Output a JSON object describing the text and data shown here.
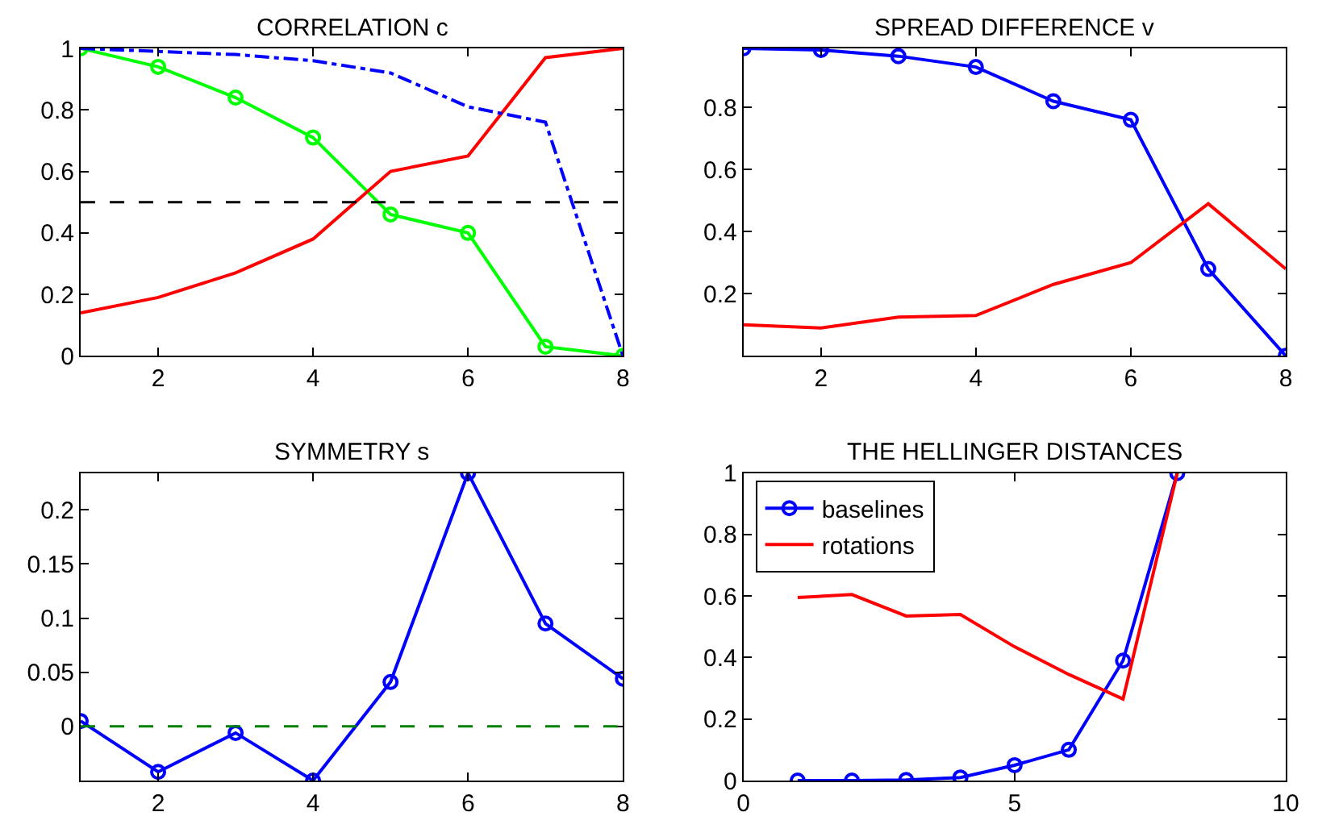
{
  "chart_data": [
    {
      "type": "line",
      "title": "CORRELATION c",
      "x": [
        1,
        2,
        3,
        4,
        5,
        6,
        7,
        8
      ],
      "xlim": [
        1,
        8
      ],
      "xticks": [
        2,
        4,
        6,
        8
      ],
      "ylim": [
        0,
        1
      ],
      "yticks": [
        0,
        0.2,
        0.4,
        0.6,
        0.8,
        1
      ],
      "grid": false,
      "legend": false,
      "series": [
        {
          "color": "#00ff00",
          "marker": "circle",
          "line_style": "solid",
          "values": [
            1.0,
            0.94,
            0.84,
            0.71,
            0.46,
            0.4,
            0.03,
            0.0
          ]
        },
        {
          "color": "#ff0000",
          "marker": "none",
          "line_style": "solid",
          "values": [
            0.14,
            0.19,
            0.27,
            0.38,
            0.6,
            0.65,
            0.97,
            1.0
          ]
        },
        {
          "color": "#0000ff",
          "marker": "none",
          "line_style": "dashdot",
          "values": [
            1.0,
            0.99,
            0.98,
            0.96,
            0.92,
            0.81,
            0.76,
            0.0
          ]
        }
      ],
      "ref_lines": [
        {
          "axis": "y",
          "value": 0.5,
          "color": "#000000",
          "line_style": "dashed"
        }
      ]
    },
    {
      "type": "line",
      "title": "SPREAD DIFFERENCE v",
      "x": [
        1,
        2,
        3,
        4,
        5,
        6,
        7,
        8
      ],
      "xlim": [
        1,
        8
      ],
      "xticks": [
        2,
        4,
        6,
        8
      ],
      "ylim": [
        0,
        0.99
      ],
      "yticks": [
        0.2,
        0.4,
        0.6,
        0.8
      ],
      "grid": false,
      "legend": false,
      "series": [
        {
          "color": "#0000ff",
          "marker": "circle",
          "line_style": "solid",
          "values": [
            0.99,
            0.985,
            0.965,
            0.93,
            0.82,
            0.76,
            0.28,
            0.0
          ]
        },
        {
          "color": "#ff0000",
          "marker": "none",
          "line_style": "solid",
          "values": [
            0.1,
            0.09,
            0.125,
            0.13,
            0.23,
            0.3,
            0.49,
            0.28
          ]
        }
      ]
    },
    {
      "type": "line",
      "title": "SYMMETRY s",
      "x": [
        1,
        2,
        3,
        4,
        5,
        6,
        7,
        8
      ],
      "xlim": [
        1,
        8
      ],
      "xticks": [
        2,
        4,
        6,
        8
      ],
      "ylim": [
        -0.05,
        0.234
      ],
      "yticks": [
        0,
        0.05,
        0.1,
        0.15,
        0.2
      ],
      "grid": false,
      "legend": false,
      "series": [
        {
          "color": "#0000ff",
          "marker": "circle",
          "line_style": "solid",
          "values": [
            0.005,
            -0.042,
            -0.006,
            -0.05,
            0.041,
            0.234,
            0.095,
            0.044
          ]
        }
      ],
      "ref_lines": [
        {
          "axis": "y",
          "value": 0,
          "color": "#008000",
          "line_style": "dashed"
        }
      ]
    },
    {
      "type": "line",
      "title": "THE HELLINGER DISTANCES",
      "x": [
        1,
        2,
        3,
        4,
        5,
        6,
        7,
        8
      ],
      "xlim": [
        0,
        10
      ],
      "xticks": [
        0,
        5,
        10
      ],
      "ylim": [
        0,
        1
      ],
      "yticks": [
        0,
        0.2,
        0.4,
        0.6,
        0.8,
        1
      ],
      "grid": false,
      "legend": "top left",
      "series": [
        {
          "name": "baselines",
          "color": "#0000ff",
          "marker": "circle",
          "line_style": "solid",
          "values": [
            0.0,
            0.0,
            0.002,
            0.01,
            0.05,
            0.1,
            0.39,
            1.0
          ]
        },
        {
          "name": "rotations",
          "color": "#ff0000",
          "marker": "none",
          "line_style": "solid",
          "values": [
            0.595,
            0.605,
            0.535,
            0.54,
            0.435,
            0.345,
            0.265,
            1.0
          ]
        }
      ]
    }
  ]
}
